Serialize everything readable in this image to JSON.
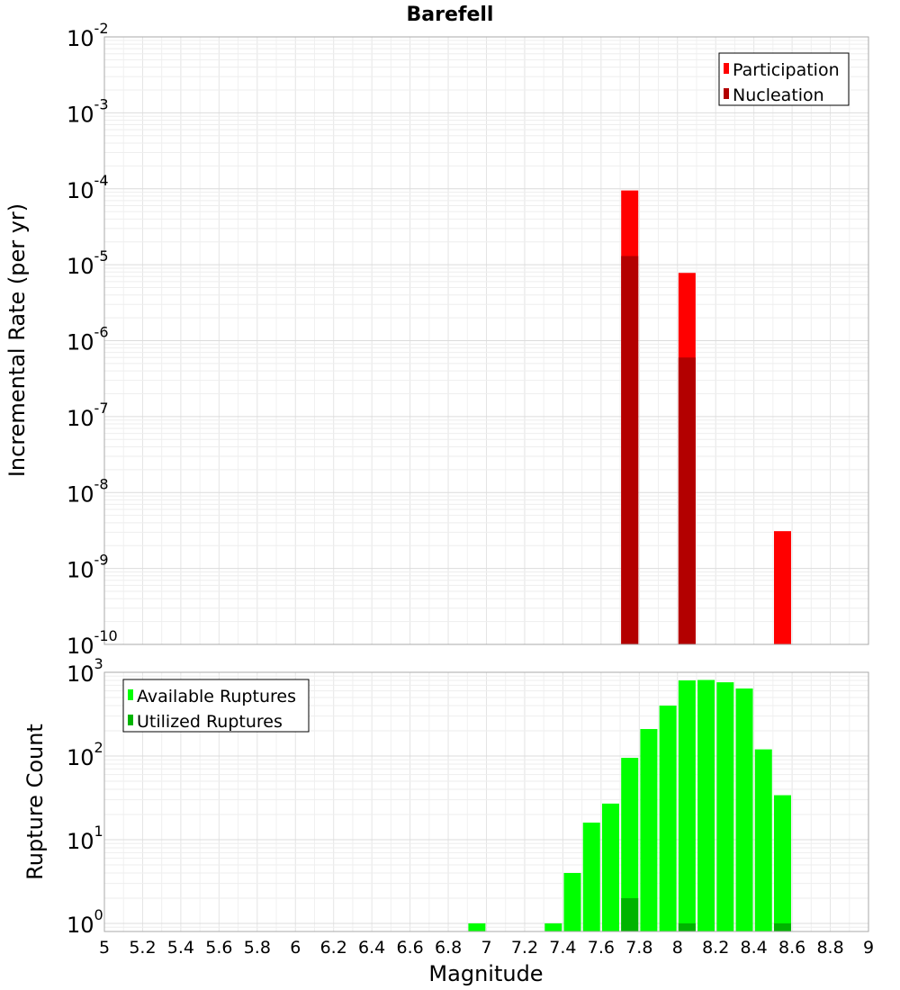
{
  "chart_data": [
    {
      "type": "bar",
      "title": "Barefell",
      "xlabel": "Magnitude",
      "ylabel": "Incremental Rate (per yr)",
      "xlim": [
        5,
        9
      ],
      "ylim": [
        1e-10,
        0.01
      ],
      "y_scale": "log",
      "grid": true,
      "legend_position": "top-right",
      "y_ticks": [
        {
          "base": "10",
          "exp": "-10"
        },
        {
          "base": "10",
          "exp": "-9"
        },
        {
          "base": "10",
          "exp": "-8"
        },
        {
          "base": "10",
          "exp": "-7"
        },
        {
          "base": "10",
          "exp": "-6"
        },
        {
          "base": "10",
          "exp": "-5"
        },
        {
          "base": "10",
          "exp": "-4"
        },
        {
          "base": "10",
          "exp": "-3"
        },
        {
          "base": "10",
          "exp": "-2"
        }
      ],
      "series": [
        {
          "name": "Participation",
          "color": "#ff0000",
          "points": [
            {
              "x": 7.75,
              "y": 9.5e-05
            },
            {
              "x": 8.05,
              "y": 7.8e-06
            },
            {
              "x": 8.55,
              "y": 3.1e-09
            }
          ]
        },
        {
          "name": "Nucleation",
          "color": "#b30000",
          "points": [
            {
              "x": 7.75,
              "y": 1.3e-05
            },
            {
              "x": 8.05,
              "y": 6e-07
            }
          ]
        }
      ]
    },
    {
      "type": "bar",
      "xlabel": "Magnitude",
      "ylabel": "Rupture Count",
      "xlim": [
        5,
        9
      ],
      "ylim": [
        0.8,
        1000
      ],
      "y_scale": "log",
      "grid": true,
      "legend_position": "top-left",
      "x_ticks": [
        "5",
        "5.2",
        "5.4",
        "5.6",
        "5.8",
        "6",
        "6.2",
        "6.4",
        "6.6",
        "6.8",
        "7",
        "7.2",
        "7.4",
        "7.6",
        "7.8",
        "8",
        "8.2",
        "8.4",
        "8.6",
        "8.8",
        "9"
      ],
      "y_ticks": [
        {
          "base": "10",
          "exp": "0"
        },
        {
          "base": "10",
          "exp": "1"
        },
        {
          "base": "10",
          "exp": "2"
        },
        {
          "base": "10",
          "exp": "3"
        }
      ],
      "series": [
        {
          "name": "Available Ruptures",
          "color": "#00ff00",
          "points": [
            {
              "x": 6.95,
              "y": 1
            },
            {
              "x": 7.35,
              "y": 1
            },
            {
              "x": 7.45,
              "y": 4
            },
            {
              "x": 7.55,
              "y": 16
            },
            {
              "x": 7.65,
              "y": 27
            },
            {
              "x": 7.75,
              "y": 95
            },
            {
              "x": 7.85,
              "y": 210
            },
            {
              "x": 7.95,
              "y": 400
            },
            {
              "x": 8.05,
              "y": 800
            },
            {
              "x": 8.15,
              "y": 810
            },
            {
              "x": 8.25,
              "y": 760
            },
            {
              "x": 8.35,
              "y": 640
            },
            {
              "x": 8.45,
              "y": 120
            },
            {
              "x": 8.55,
              "y": 34
            }
          ]
        },
        {
          "name": "Utilized Ruptures",
          "color": "#00b400",
          "points": [
            {
              "x": 7.75,
              "y": 2
            },
            {
              "x": 8.05,
              "y": 1
            },
            {
              "x": 8.55,
              "y": 1
            }
          ]
        }
      ]
    }
  ]
}
